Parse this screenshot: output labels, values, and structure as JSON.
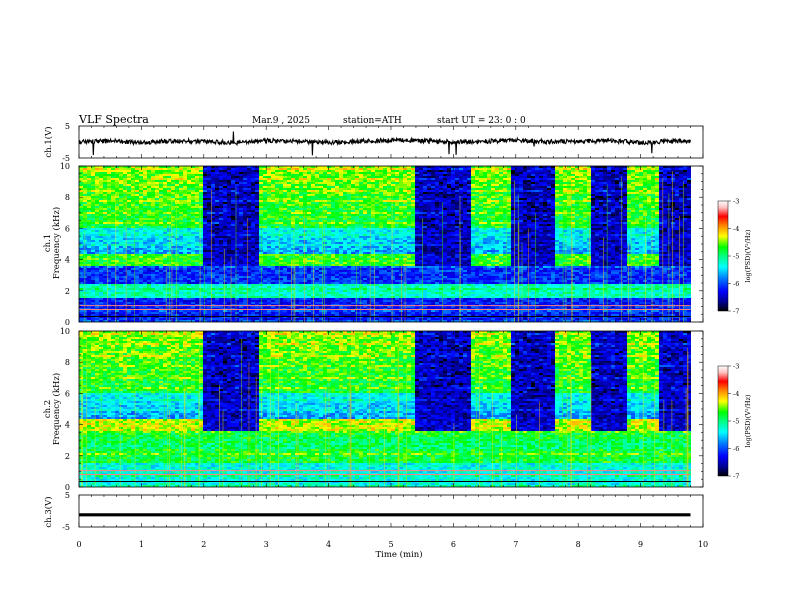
{
  "header": {
    "title": "VLF  Spectra",
    "date": "Mar.9  , 2025",
    "station": "station=ATH",
    "start": "start  UT  =   23: 0  : 0"
  },
  "colors": {
    "colormap": [
      "#000000",
      "#00008b",
      "#0000ff",
      "#0080ff",
      "#00ffff",
      "#00ff80",
      "#00ff00",
      "#ffff00",
      "#ff8000",
      "#ff0000",
      "#ffc0c0",
      "#ffffff"
    ],
    "waveform": "#000000"
  },
  "chart_data": [
    {
      "type": "line",
      "ylabel": "ch.1(V)",
      "ylim": [
        -5,
        5
      ],
      "yticks": [
        "5",
        "-5"
      ],
      "x": [
        0,
        0.5,
        1,
        1.5,
        2,
        2.5,
        3,
        3.5,
        4,
        4.5,
        5,
        5.5,
        6,
        6.5,
        7,
        7.5,
        8,
        8.5,
        9,
        9.5,
        9.8
      ],
      "values": [
        0,
        0.3,
        -0.2,
        0.4,
        0.2,
        -0.3,
        0.5,
        0.2,
        -0.1,
        0.2,
        0.6,
        0.3,
        0.1,
        0.2,
        0.6,
        0.1,
        0.2,
        0.4,
        -0.2,
        0.3,
        0.2
      ]
    },
    {
      "type": "heatmap",
      "ylabel": "ch.1 Frequency (kHz)",
      "ylim": [
        0,
        10
      ],
      "yticks": [
        "0",
        "2",
        "4",
        "6",
        "8",
        "10"
      ],
      "xlim": [
        0,
        10
      ],
      "colorbar_label": "log(PSD)(V²/Hz)",
      "colorbar_range": [
        -7,
        -3
      ],
      "colorbar_ticks": [
        "-3",
        "-4",
        "-5",
        "-6",
        "-7"
      ],
      "pulse_band_khz": [
        3.6,
        4.4
      ],
      "pulse_on_min": [
        [
          0,
          2.0
        ],
        [
          2.9,
          5.4
        ],
        [
          6.3,
          6.9
        ],
        [
          7.6,
          8.2
        ],
        [
          8.8,
          9.3
        ]
      ]
    },
    {
      "type": "heatmap",
      "ylabel": "ch.2 Frequency (kHz)",
      "ylim": [
        0,
        10
      ],
      "yticks": [
        "0",
        "2",
        "4",
        "6",
        "8",
        "10"
      ],
      "xlim": [
        0,
        10
      ],
      "colorbar_label": "log(PSD)(V²/Hz)",
      "colorbar_range": [
        -7,
        -3
      ],
      "colorbar_ticks": [
        "-3",
        "-4",
        "-5",
        "-6",
        "-7"
      ],
      "pulse_band_khz": [
        3.6,
        4.4
      ],
      "pulse_on_min": [
        [
          0,
          2.0
        ],
        [
          2.9,
          5.4
        ],
        [
          6.3,
          6.9
        ],
        [
          7.6,
          8.2
        ],
        [
          8.8,
          9.3
        ]
      ]
    },
    {
      "type": "line",
      "ylabel": "ch.3(V)",
      "ylim": [
        -5,
        5
      ],
      "yticks": [
        "5",
        "-5"
      ],
      "x": [
        0,
        9.8
      ],
      "values": [
        -1.2,
        -1.2
      ]
    }
  ],
  "xaxis": {
    "label": "Time  (min)",
    "range": [
      0,
      10
    ],
    "ticks": [
      "0",
      "1",
      "2",
      "3",
      "4",
      "5",
      "6",
      "7",
      "8",
      "9",
      "10"
    ]
  }
}
